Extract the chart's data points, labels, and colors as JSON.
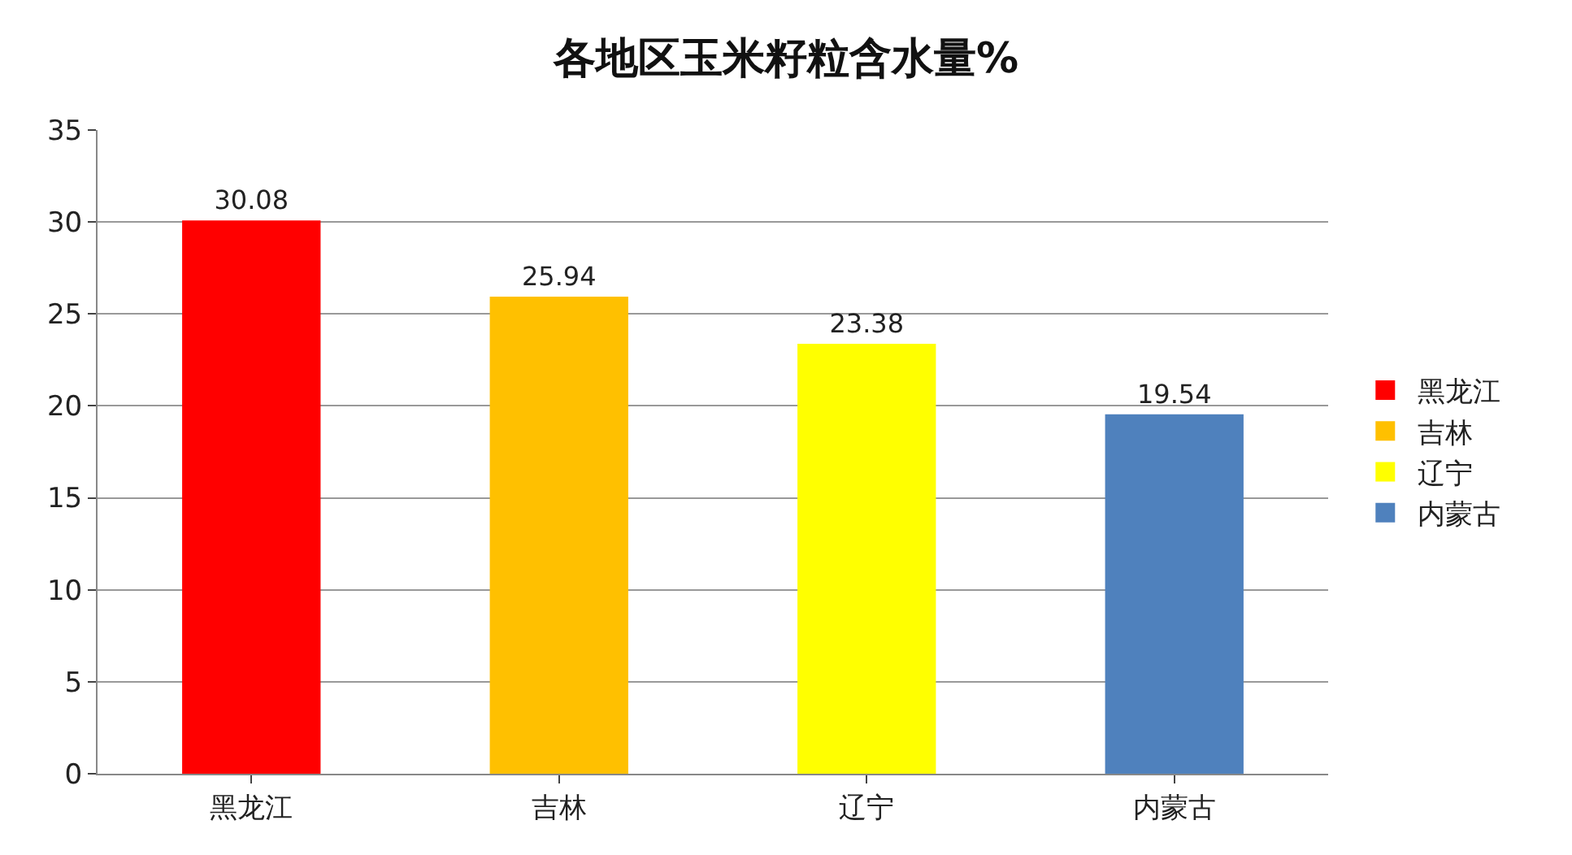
{
  "chart_data": {
    "type": "bar",
    "title": "各地区玉米籽粒含水量%",
    "categories": [
      "黑龙江",
      "吉林",
      "辽宁",
      "内蒙古"
    ],
    "series": [
      {
        "name": "黑龙江",
        "color": "#ff0000",
        "values": [
          30.08,
          null,
          null,
          null
        ]
      },
      {
        "name": "吉林",
        "color": "#ffc000",
        "values": [
          null,
          25.94,
          null,
          null
        ]
      },
      {
        "name": "辽宁",
        "color": "#ffff00",
        "values": [
          null,
          null,
          23.38,
          null
        ]
      },
      {
        "name": "内蒙古",
        "color": "#4f81bd",
        "values": [
          null,
          null,
          null,
          19.54
        ]
      }
    ],
    "ylim": [
      0,
      35
    ],
    "yticks": [
      0,
      5,
      10,
      15,
      20,
      25,
      30,
      35
    ],
    "grid": "y",
    "legend": "right",
    "data_labels": true
  }
}
